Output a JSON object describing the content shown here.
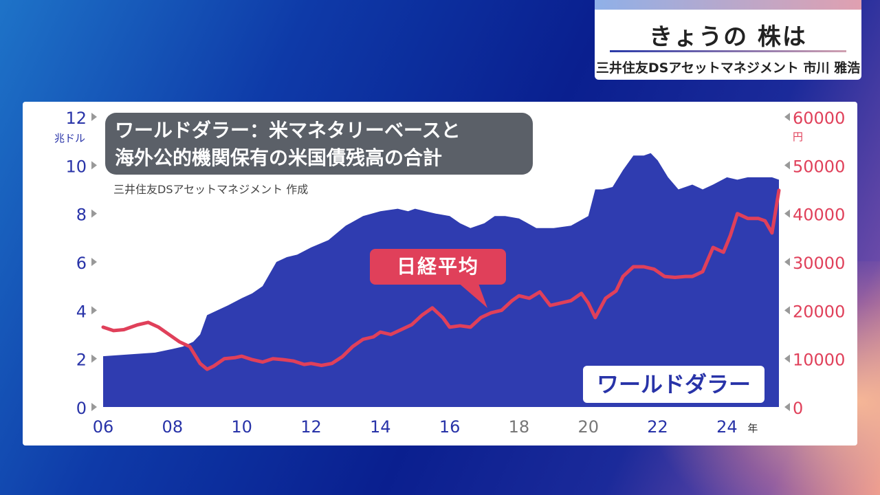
{
  "header": {
    "title": "きょうの 株は",
    "subtitle": "三井住友DSアセットマネジメント 市川 雅浩"
  },
  "chart_title_lines": [
    "ワールドダラー：米マネタリーベースと",
    "海外公的機関保有の米国債残高の合計"
  ],
  "source": "三井住友DSアセットマネジメント 作成",
  "labels": {
    "nikkei": "日経平均",
    "world": "ワールドダラー",
    "left_unit": "兆ドル",
    "right_unit": "円",
    "x_unit": "年"
  },
  "colors": {
    "area": "#2f3cb0",
    "line": "#e0405a",
    "left_axis": "#2833a8",
    "right_axis": "#e0405a"
  },
  "chart_data": {
    "type": "line",
    "x_ticks": [
      "06",
      "08",
      "10",
      "12",
      "14",
      "16",
      "18",
      "20",
      "22",
      "24"
    ],
    "x_range": [
      2006.0,
      2025.5
    ],
    "left_axis": {
      "ticks": [
        "0",
        "2",
        "4",
        "6",
        "8",
        "10",
        "12"
      ],
      "range": [
        0,
        12
      ]
    },
    "right_axis": {
      "ticks": [
        "0",
        "10000",
        "20000",
        "30000",
        "40000",
        "50000",
        "60000"
      ],
      "range": [
        0,
        60000
      ]
    },
    "series": [
      {
        "name": "ワールドダラー",
        "type": "area",
        "axis": "left",
        "x": [
          2006.0,
          2006.5,
          2007.0,
          2007.5,
          2008.0,
          2008.3,
          2008.6,
          2008.8,
          2009.0,
          2009.3,
          2009.6,
          2010.0,
          2010.3,
          2010.6,
          2010.8,
          2011.0,
          2011.3,
          2011.6,
          2012.0,
          2012.5,
          2013.0,
          2013.5,
          2014.0,
          2014.5,
          2014.8,
          2015.0,
          2015.3,
          2015.6,
          2016.0,
          2016.3,
          2016.6,
          2017.0,
          2017.3,
          2017.6,
          2018.0,
          2018.5,
          2019.0,
          2019.5,
          2020.0,
          2020.2,
          2020.4,
          2020.7,
          2021.0,
          2021.3,
          2021.6,
          2021.8,
          2022.0,
          2022.3,
          2022.6,
          2022.8,
          2023.0,
          2023.3,
          2023.6,
          2024.0,
          2024.3,
          2024.6,
          2025.0,
          2025.3,
          2025.5
        ],
        "values": [
          2.1,
          2.15,
          2.2,
          2.25,
          2.4,
          2.5,
          2.7,
          3.0,
          3.8,
          4.0,
          4.2,
          4.5,
          4.7,
          5.0,
          5.5,
          6.0,
          6.2,
          6.3,
          6.6,
          6.9,
          7.5,
          7.9,
          8.1,
          8.2,
          8.1,
          8.2,
          8.1,
          8.0,
          7.9,
          7.6,
          7.4,
          7.6,
          7.9,
          7.9,
          7.8,
          7.4,
          7.4,
          7.5,
          7.9,
          9.0,
          9.0,
          9.1,
          9.8,
          10.4,
          10.4,
          10.5,
          10.2,
          9.5,
          9.0,
          9.1,
          9.2,
          9.0,
          9.2,
          9.5,
          9.4,
          9.5,
          9.5,
          9.5,
          9.4
        ]
      },
      {
        "name": "日経平均",
        "type": "line",
        "axis": "right",
        "x": [
          2006.0,
          2006.3,
          2006.6,
          2007.0,
          2007.3,
          2007.6,
          2007.9,
          2008.2,
          2008.5,
          2008.8,
          2009.0,
          2009.2,
          2009.5,
          2009.8,
          2010.0,
          2010.3,
          2010.6,
          2010.9,
          2011.2,
          2011.5,
          2011.8,
          2012.0,
          2012.3,
          2012.6,
          2012.9,
          2013.2,
          2013.5,
          2013.8,
          2014.0,
          2014.3,
          2014.6,
          2014.9,
          2015.2,
          2015.5,
          2015.8,
          2016.0,
          2016.3,
          2016.6,
          2016.9,
          2017.2,
          2017.5,
          2017.8,
          2018.0,
          2018.3,
          2018.6,
          2018.9,
          2019.2,
          2019.5,
          2019.8,
          2020.0,
          2020.2,
          2020.5,
          2020.8,
          2021.0,
          2021.3,
          2021.6,
          2021.9,
          2022.2,
          2022.5,
          2022.8,
          2023.0,
          2023.3,
          2023.6,
          2023.9,
          2024.1,
          2024.3,
          2024.6,
          2024.9,
          2025.1,
          2025.3,
          2025.5
        ],
        "values": [
          16500,
          15800,
          16000,
          17000,
          17500,
          16500,
          15000,
          13500,
          12500,
          9000,
          7800,
          8500,
          10000,
          10200,
          10500,
          9800,
          9300,
          10000,
          9800,
          9500,
          8800,
          9000,
          8600,
          9000,
          10400,
          12500,
          14000,
          14500,
          15500,
          15000,
          16000,
          17000,
          19000,
          20500,
          18500,
          16500,
          16800,
          16500,
          18500,
          19500,
          20000,
          22000,
          23000,
          22500,
          23800,
          21000,
          21500,
          22000,
          23500,
          21500,
          18500,
          22500,
          24000,
          27000,
          29000,
          29000,
          28500,
          27000,
          26800,
          27000,
          27000,
          28000,
          33000,
          32000,
          35500,
          40000,
          39000,
          39000,
          38500,
          36000,
          44800
        ]
      }
    ]
  }
}
